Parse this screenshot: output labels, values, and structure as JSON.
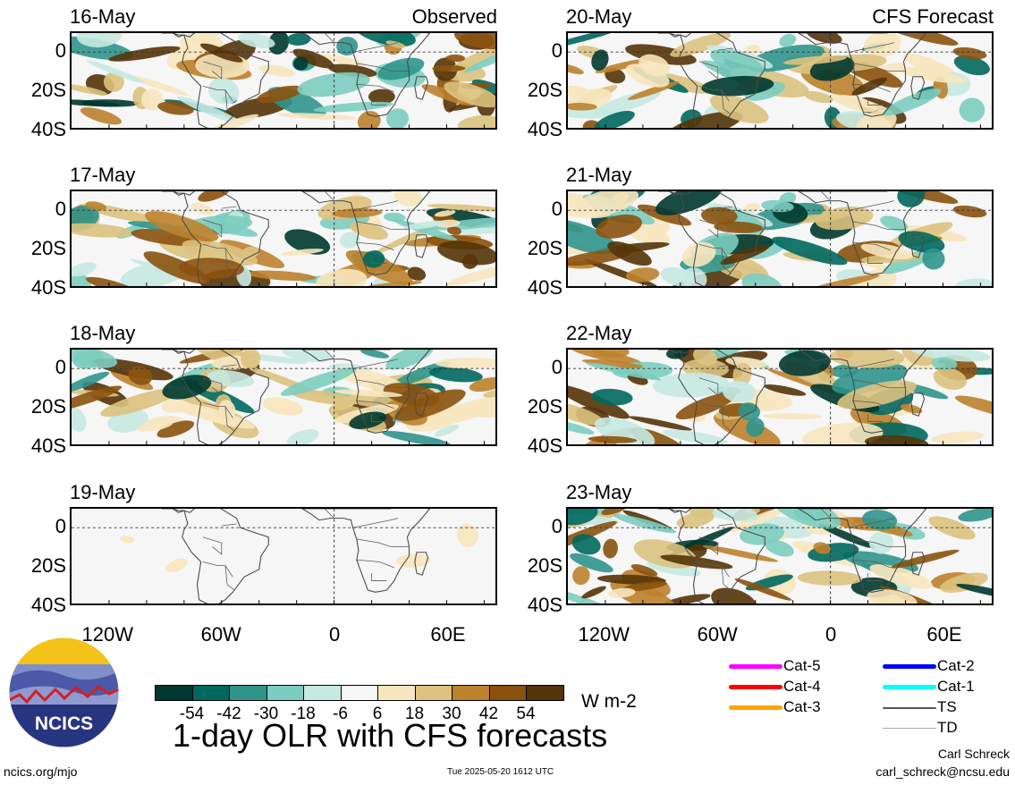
{
  "panels": [
    {
      "date": "16-May",
      "tag": "Observed",
      "col": 0,
      "row": 0,
      "mode": "obs"
    },
    {
      "date": "17-May",
      "tag": "",
      "col": 0,
      "row": 1,
      "mode": "obs"
    },
    {
      "date": "18-May",
      "tag": "",
      "col": 0,
      "row": 2,
      "mode": "obs"
    },
    {
      "date": "19-May",
      "tag": "",
      "col": 0,
      "row": 3,
      "mode": "empty"
    },
    {
      "date": "20-May",
      "tag": "CFS Forecast",
      "col": 1,
      "row": 0,
      "mode": "fcst"
    },
    {
      "date": "21-May",
      "tag": "",
      "col": 1,
      "row": 1,
      "mode": "fcst"
    },
    {
      "date": "22-May",
      "tag": "",
      "col": 1,
      "row": 2,
      "mode": "fcst"
    },
    {
      "date": "23-May",
      "tag": "",
      "col": 1,
      "row": 3,
      "mode": "fcst"
    }
  ],
  "lat_labels": [
    "0",
    "20S",
    "40S"
  ],
  "lon_labels": [
    "120W",
    "60W",
    "0",
    "60E"
  ],
  "colorbar": {
    "colors": [
      "#00382f",
      "#00685e",
      "#2f958c",
      "#7ccdbf",
      "#c6e9e2",
      "#f6f6f6",
      "#f7e6be",
      "#dcc27e",
      "#bc822e",
      "#8b520e",
      "#553408"
    ],
    "ticks": [
      "-54",
      "-42",
      "-30",
      "-18",
      "-6",
      "6",
      "18",
      "30",
      "42",
      "54"
    ],
    "unit": "W m-2"
  },
  "legend": [
    {
      "label": "Cat-5",
      "color": "#ff00ff",
      "icon": "line"
    },
    {
      "label": "Cat-4",
      "color": "#ff0000",
      "icon": "line"
    },
    {
      "label": "Cat-3",
      "color": "#ffa500",
      "icon": "line"
    },
    {
      "label": "Cat-2",
      "color": "#0000ff",
      "icon": "line"
    },
    {
      "label": "Cat-1",
      "color": "#00ffff",
      "icon": "line"
    },
    {
      "label": "TS",
      "color": "#555555",
      "icon": "line"
    },
    {
      "label": "TD",
      "color": "#aaaaaa",
      "icon": "line"
    }
  ],
  "logo": {
    "text": "NCICS"
  },
  "title": "1-day OLR with CFS forecasts",
  "footer": {
    "left": "ncics.org/mjo",
    "center": "Tue 2025-05-20 1612 UTC",
    "right_name": "Carl Schreck",
    "right_email": "carl_schreck@ncsu.edu"
  }
}
